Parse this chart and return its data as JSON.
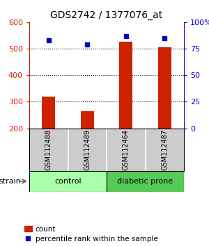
{
  "title": "GDS2742 / 1377076_at",
  "samples": [
    "GSM112488",
    "GSM112489",
    "GSM112464",
    "GSM112487"
  ],
  "counts": [
    320,
    265,
    525,
    505
  ],
  "percentiles": [
    83,
    79,
    87,
    85
  ],
  "ylim_left": [
    200,
    600
  ],
  "ylim_right": [
    0,
    100
  ],
  "yticks_left": [
    200,
    300,
    400,
    500,
    600
  ],
  "yticks_right": [
    0,
    25,
    50,
    75,
    100
  ],
  "bar_color": "#cc2200",
  "dot_color": "#0000cc",
  "groups": [
    {
      "label": "control",
      "indices": [
        0,
        1
      ],
      "color": "#aaffaa"
    },
    {
      "label": "diabetic prone",
      "indices": [
        2,
        3
      ],
      "color": "#55cc55"
    }
  ],
  "strain_label": "strain",
  "legend_count_label": "count",
  "legend_pct_label": "percentile rank within the sample",
  "title_fontsize": 10,
  "tick_fontsize": 8,
  "bar_width": 0.35,
  "background_color": "#ffffff",
  "sample_box_color": "#cccccc",
  "bar_bottom": 200
}
